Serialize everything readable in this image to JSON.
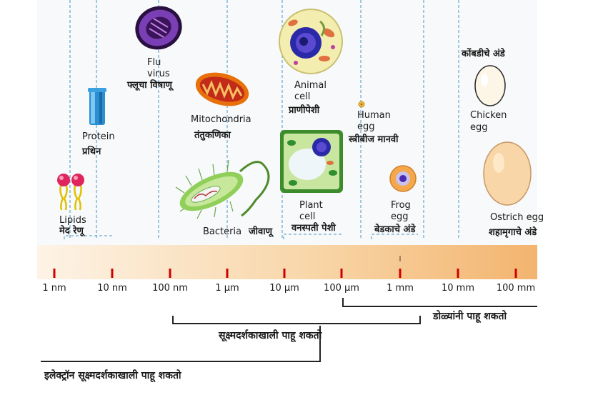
{
  "scale": {
    "ticks": [
      "1 nm",
      "10 nm",
      "100 nm",
      "1 µm",
      "10 µm",
      "100 µm",
      "1 mm",
      "10 mm",
      "100 mm"
    ]
  },
  "items": {
    "lipids": {
      "en": "Lipids",
      "mr": "मेद रेणू"
    },
    "protein": {
      "en": "Protein",
      "mr": "प्रथिन"
    },
    "flu_virus": {
      "en_1": "Flu",
      "en_2": "virus",
      "mr": "फ्लूचा विषाणू"
    },
    "mitochondria": {
      "en": "Mitochondria",
      "mr": "तंतुकणिका"
    },
    "bacteria": {
      "en": "Bacteria",
      "mr": "जीवाणू"
    },
    "animal_cell": {
      "en_1": "Animal",
      "en_2": "cell",
      "mr": "प्राणीपेशी"
    },
    "plant_cell": {
      "en_1": "Plant",
      "en_2": "cell",
      "mr": "वनस्पती पेशी"
    },
    "human_egg": {
      "en_1": "Human",
      "en_2": "egg",
      "mr": "स्त्रीबीज मानवी"
    },
    "frog_egg": {
      "en_1": "Frog",
      "en_2": "egg",
      "mr": "बेडकाचे अंडे"
    },
    "chicken_egg": {
      "en_1": "Chicken",
      "en_2": "egg",
      "mr": "कोंबडीचे अंडे"
    },
    "ostrich_egg": {
      "en": "Ostrich egg",
      "mr": "शहामृगाचे अंडे"
    }
  },
  "ranges": {
    "naked_eye": "डोळ्यांनी पाहू शकतो",
    "light_microscope": "सूक्ष्मदर्शकाखाली पाहू शकतो",
    "electron_microscope": "इलेक्ट्रॉन सूक्ष्मदर्शकाखाली पाहू शकतो"
  },
  "colors": {
    "scale_bar_light": "#fdf1e3",
    "scale_bar_dark": "#f3b46f",
    "tick": "#cc0000",
    "guide": "#4a98c4"
  }
}
